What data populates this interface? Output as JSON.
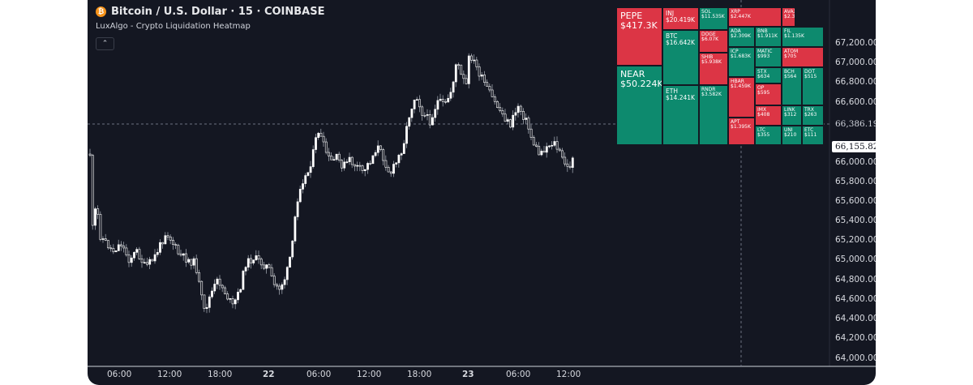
{
  "header": {
    "badge": "₿",
    "title": "Bitcoin / U.S. Dollar · 15 · COINBASE",
    "indicator": "LuxAlgo - Crypto Liquidation Heatmap",
    "collapse_glyph": "⌃"
  },
  "price_axis": {
    "labels": [
      "67,200.00",
      "67,000.00",
      "66,800.00",
      "66,600.00",
      "66,000.00",
      "65,800.00",
      "65,600.00",
      "65,400.00",
      "65,200.00",
      "65,000.00",
      "64,800.00",
      "64,600.00",
      "64,400.00",
      "64,200.00",
      "64,000.00"
    ],
    "crosshair_price": "66,386.19",
    "last_price": "66,155.82"
  },
  "time_axis": {
    "labels": [
      "06:00",
      "12:00",
      "18:00",
      "22",
      "06:00",
      "12:00",
      "18:00",
      "23",
      "06:00",
      "12:00"
    ],
    "bold": [
      false,
      false,
      false,
      true,
      false,
      false,
      false,
      true,
      false,
      false
    ]
  },
  "colors": {
    "background": "#141722",
    "up": "#ffffff",
    "green_tile": "#0d8a6e",
    "red_tile": "#dc3545",
    "crosshair": "#6b7080"
  },
  "heatmap": [
    {
      "sym": "PEPE",
      "val": "$417.3K",
      "color": "red",
      "size": "l"
    },
    {
      "sym": "NEAR",
      "val": "$50.224K",
      "color": "green",
      "size": "l"
    },
    {
      "sym": "INJ",
      "val": "$20.419K",
      "color": "red",
      "size": "m"
    },
    {
      "sym": "BTC",
      "val": "$16.642K",
      "color": "green",
      "size": "m"
    },
    {
      "sym": "ETH",
      "val": "$14.241K",
      "color": "green",
      "size": "m"
    },
    {
      "sym": "SOL",
      "val": "$11.535K",
      "color": "green",
      "size": "s"
    },
    {
      "sym": "DOGE",
      "val": "$6.07K",
      "color": "red",
      "size": "s"
    },
    {
      "sym": "SHIB",
      "val": "$5.938K",
      "color": "red",
      "size": "s"
    },
    {
      "sym": "RNDR",
      "val": "$3.582K",
      "color": "green",
      "size": "s"
    },
    {
      "sym": "XRP",
      "val": "$2.447K",
      "color": "red",
      "size": "s"
    },
    {
      "sym": "ADA",
      "val": "$2.309K",
      "color": "green",
      "size": "s"
    },
    {
      "sym": "ICP",
      "val": "$1.683K",
      "color": "green",
      "size": "s"
    },
    {
      "sym": "HBAR",
      "val": "$1.459K",
      "color": "red",
      "size": "s"
    },
    {
      "sym": "APT",
      "val": "$1.395K",
      "color": "red",
      "size": "s"
    },
    {
      "sym": "BNB",
      "val": "$1.911K",
      "color": "green",
      "size": "s"
    },
    {
      "sym": "MATIC",
      "val": "$993",
      "color": "green",
      "size": "s"
    },
    {
      "sym": "STX",
      "val": "$634",
      "color": "green",
      "size": "s"
    },
    {
      "sym": "OP",
      "val": "$595",
      "color": "red",
      "size": "s"
    },
    {
      "sym": "IMX",
      "val": "$408",
      "color": "red",
      "size": "s"
    },
    {
      "sym": "LTC",
      "val": "$355",
      "color": "green",
      "size": "s"
    },
    {
      "sym": "AVAX",
      "val": "$2.3",
      "color": "red",
      "size": "s"
    },
    {
      "sym": "FIL",
      "val": "$1.135K",
      "color": "green",
      "size": "s"
    },
    {
      "sym": "ATOM",
      "val": "$705",
      "color": "red",
      "size": "s"
    },
    {
      "sym": "BCH",
      "val": "$564",
      "color": "green",
      "size": "s"
    },
    {
      "sym": "DOT",
      "val": "$515",
      "color": "green",
      "size": "s"
    },
    {
      "sym": "LINK",
      "val": "$312",
      "color": "green",
      "size": "s"
    },
    {
      "sym": "TRX",
      "val": "$263",
      "color": "green",
      "size": "s"
    },
    {
      "sym": "UNI",
      "val": "$210",
      "color": "green",
      "size": "s"
    },
    {
      "sym": "ETC",
      "val": "$111",
      "color": "green",
      "size": "s"
    }
  ]
}
